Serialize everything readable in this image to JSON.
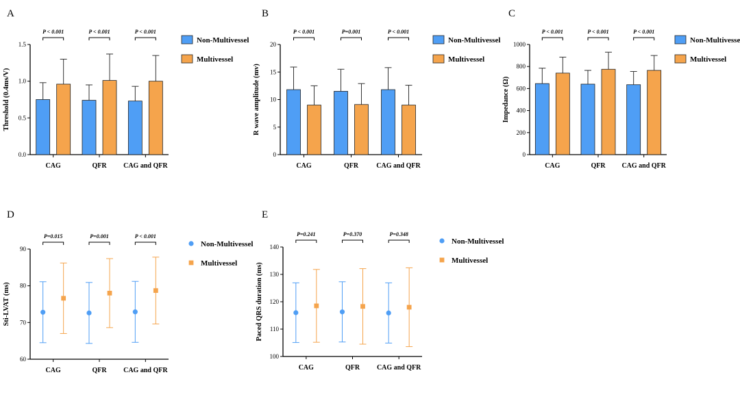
{
  "colors": {
    "non_multivessel": "#4f9ef5",
    "multivessel": "#f5a44c"
  },
  "chart_data": [
    {
      "panel": "A",
      "type": "bar",
      "ylabel": "Threshold (0.4ms/V)",
      "ylim": [
        0,
        1.5
      ],
      "yticks": [
        "0.0",
        "0.5",
        "1.0",
        "1.5"
      ],
      "categories": [
        "CAG",
        "QFR",
        "CAG and QFR"
      ],
      "series": [
        {
          "name": "Non-Multivessel",
          "values": [
            0.75,
            0.74,
            0.73
          ],
          "err": [
            0.23,
            0.21,
            0.2
          ]
        },
        {
          "name": "Multivessel",
          "values": [
            0.96,
            1.01,
            1.0
          ],
          "err": [
            0.34,
            0.36,
            0.35
          ]
        }
      ],
      "significance": [
        "P < 0.001",
        "P < 0.001",
        "P < 0.001"
      ],
      "legend": "right"
    },
    {
      "panel": "B",
      "type": "bar",
      "ylabel": "R wave amplitude (mv)",
      "ylim": [
        0,
        20
      ],
      "yticks": [
        "0",
        "5",
        "10",
        "15",
        "20"
      ],
      "categories": [
        "CAG",
        "QFR",
        "CAG and QFR"
      ],
      "series": [
        {
          "name": "Non-Multivessel",
          "values": [
            11.8,
            11.5,
            11.8
          ],
          "err": [
            4.1,
            4.0,
            4.0
          ]
        },
        {
          "name": "Multivessel",
          "values": [
            9.0,
            9.1,
            9.0
          ],
          "err": [
            3.5,
            3.8,
            3.6
          ]
        }
      ],
      "significance": [
        "P < 0.001",
        "P=0.001",
        "P < 0.001"
      ],
      "legend": "right"
    },
    {
      "panel": "C",
      "type": "bar",
      "ylabel": "Impedance (Ω)",
      "ylim": [
        0,
        1000
      ],
      "yticks": [
        "0",
        "200",
        "400",
        "600",
        "800",
        "1000"
      ],
      "categories": [
        "CAG",
        "QFR",
        "CAG and QFR"
      ],
      "series": [
        {
          "name": "Non-Multivessel",
          "values": [
            645,
            640,
            635
          ],
          "err": [
            140,
            125,
            120
          ]
        },
        {
          "name": "Multivessel",
          "values": [
            740,
            775,
            765
          ],
          "err": [
            145,
            155,
            135
          ]
        }
      ],
      "significance": [
        "P < 0.001",
        "P < 0.001",
        "P < 0.001"
      ],
      "legend": "right"
    },
    {
      "panel": "D",
      "type": "scatter",
      "ylabel": "Sti-LVAT (ms)",
      "ylim": [
        60,
        90
      ],
      "yticks": [
        "60",
        "70",
        "80",
        "90"
      ],
      "categories": [
        "CAG",
        "QFR",
        "CAG and QFR"
      ],
      "series": [
        {
          "name": "Non-Multivessel",
          "values": [
            72.8,
            72.6,
            72.9
          ],
          "err": [
            8.3,
            8.3,
            8.3
          ]
        },
        {
          "name": "Multivessel",
          "values": [
            76.6,
            78.0,
            78.7
          ],
          "err": [
            9.6,
            9.4,
            9.1
          ]
        }
      ],
      "significance": [
        "P=0.015",
        "P=0.001",
        "P < 0.001"
      ],
      "legend": "right"
    },
    {
      "panel": "E",
      "type": "scatter",
      "ylabel": "Paced QRS duration (ms)",
      "ylim": [
        100,
        140
      ],
      "yticks": [
        "100",
        "110",
        "120",
        "130",
        "140"
      ],
      "categories": [
        "CAG",
        "QFR",
        "CAG and QFR"
      ],
      "series": [
        {
          "name": "Non-Multivessel",
          "values": [
            116.0,
            116.3,
            115.9
          ],
          "err": [
            10.9,
            11.0,
            11.0
          ]
        },
        {
          "name": "Multivessel",
          "values": [
            118.5,
            118.3,
            118.0
          ],
          "err": [
            13.3,
            13.8,
            14.4
          ]
        }
      ],
      "significance": [
        "P=0.241",
        "P=0.370",
        "P=0.348"
      ],
      "legend": "right"
    }
  ]
}
